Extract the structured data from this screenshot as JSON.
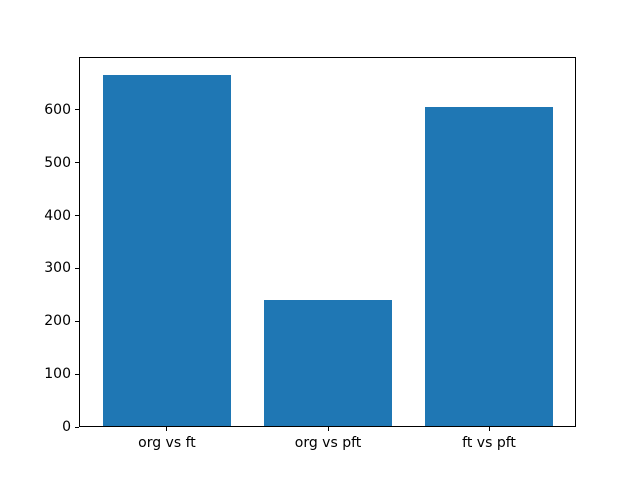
{
  "figure": {
    "background": "#ffffff"
  },
  "chart_data": {
    "type": "bar",
    "categories": [
      "org vs ft",
      "org vs pft",
      "ft vs pft"
    ],
    "values": [
      665,
      240,
      605
    ],
    "title": "",
    "xlabel": "",
    "ylabel": "",
    "yticks": [
      0,
      100,
      200,
      300,
      400,
      500,
      600
    ],
    "ylim": [
      0,
      698
    ],
    "xlim": [
      -0.54,
      2.54
    ],
    "bar_color": "#1f77b4",
    "bar_width_fraction": 0.8,
    "grid": false,
    "legend_visible": false,
    "tick_color": "#000000",
    "spine_color": "#000000"
  }
}
